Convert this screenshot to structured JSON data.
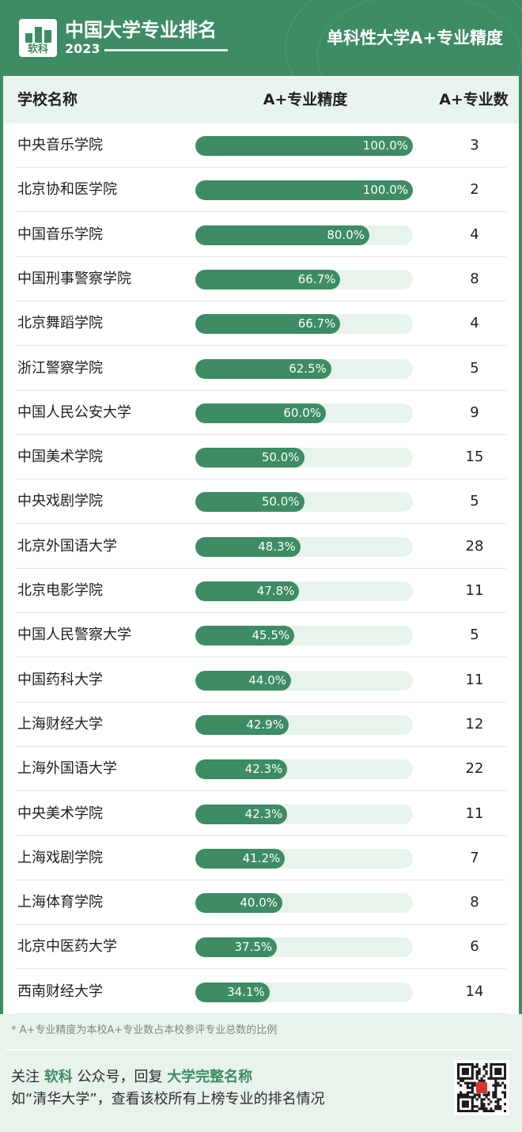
{
  "header": {
    "brand_title": "中国大学专业排名",
    "brand_year": "2023",
    "logo_text": "软科",
    "sub_title": "单科性大学A+专业精度"
  },
  "table": {
    "col_school": "学校名称",
    "col_precision": "A+专业精度",
    "col_count": "A+专业数"
  },
  "chart_data": {
    "type": "bar",
    "title": "单科性大学A+专业精度",
    "xlabel": "A+专业精度",
    "ylabel": "学校名称",
    "xlim": [
      0,
      100
    ],
    "unit": "%",
    "categories": [
      "中央音乐学院",
      "北京协和医学院",
      "中国音乐学院",
      "中国刑事警察学院",
      "北京舞蹈学院",
      "浙江警察学院",
      "中国人民公安大学",
      "中国美术学院",
      "中央戏剧学院",
      "北京外国语大学",
      "北京电影学院",
      "中国人民警察大学",
      "中国药科大学",
      "上海财经大学",
      "上海外国语大学",
      "中央美术学院",
      "上海戏剧学院",
      "上海体育学院",
      "北京中医药大学",
      "西南财经大学"
    ],
    "values": [
      100.0,
      100.0,
      80.0,
      66.7,
      66.7,
      62.5,
      60.0,
      50.0,
      50.0,
      48.3,
      47.8,
      45.5,
      44.0,
      42.9,
      42.3,
      42.3,
      41.2,
      40.0,
      37.5,
      34.1
    ],
    "labels": [
      "100.0%",
      "100.0%",
      "80.0%",
      "66.7%",
      "66.7%",
      "62.5%",
      "60.0%",
      "50.0%",
      "50.0%",
      "48.3%",
      "47.8%",
      "45.5%",
      "44.0%",
      "42.9%",
      "42.3%",
      "42.3%",
      "41.2%",
      "40.0%",
      "37.5%",
      "34.1%"
    ],
    "counts": [
      3,
      2,
      4,
      8,
      4,
      5,
      9,
      15,
      5,
      28,
      11,
      5,
      11,
      12,
      22,
      11,
      7,
      8,
      6,
      14
    ],
    "bar_color": "#3d8c63",
    "track_color": "#e8f3ec"
  },
  "footer": {
    "footnote": "* A+专业精度为本校A+专业数占本校参评专业总数的比例",
    "cta1_a": "关注 ",
    "cta1_b": "软科",
    "cta1_c": " 公众号，回复 ",
    "cta1_d": "大学完整名称",
    "cta2": "如“清华大学”，查看该校所有上榜专业的排名情况"
  },
  "colors": {
    "accent": "#3d8c63",
    "light": "#e8f3ec"
  }
}
